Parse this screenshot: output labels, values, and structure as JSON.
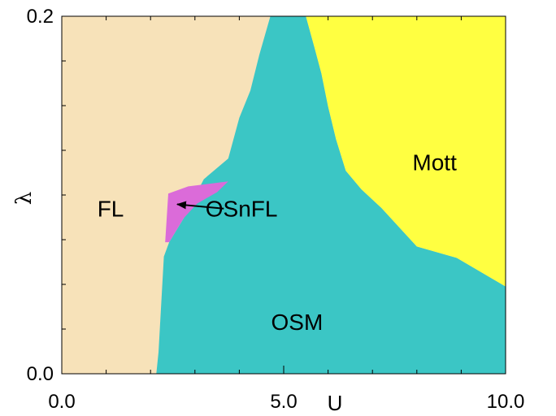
{
  "chart_data": {
    "type": "area",
    "xlabel": "U",
    "ylabel": "λ",
    "xlim": [
      0.0,
      10.0
    ],
    "ylim": [
      0.0,
      0.2
    ],
    "x_tick_labels": [
      "0.0",
      "5.0",
      "10.0"
    ],
    "y_tick_labels": [
      "0.0",
      "0.2"
    ],
    "grid": false,
    "regions": [
      {
        "name": "FL",
        "color": "#f7e2b9",
        "polygon": [
          [
            0.0,
            0.0
          ],
          [
            10.0,
            0.0
          ],
          [
            10.0,
            0.2
          ],
          [
            0.0,
            0.2
          ]
        ]
      },
      {
        "name": "OSM",
        "color": "#3bc6c5",
        "polygon": [
          [
            2.13,
            0.0
          ],
          [
            10.0,
            0.0
          ],
          [
            10.0,
            0.0488
          ],
          [
            8.9,
            0.0648
          ],
          [
            8.0,
            0.0712
          ],
          [
            7.2,
            0.0928
          ],
          [
            6.75,
            0.1032
          ],
          [
            6.4,
            0.1136
          ],
          [
            6.18,
            0.1312
          ],
          [
            6.0,
            0.1496
          ],
          [
            5.85,
            0.168
          ],
          [
            5.7,
            0.182
          ],
          [
            5.5,
            0.2
          ],
          [
            4.7,
            0.2
          ],
          [
            4.45,
            0.1784
          ],
          [
            4.25,
            0.1584
          ],
          [
            4.0,
            0.1432
          ],
          [
            3.75,
            0.1204
          ],
          [
            3.2,
            0.1088
          ],
          [
            2.75,
            0.0872
          ],
          [
            2.42,
            0.0736
          ],
          [
            2.3,
            0.0656
          ],
          [
            2.18,
            0.012
          ]
        ]
      },
      {
        "name": "OSnFL",
        "color": "#db6bd9",
        "polygon": [
          [
            2.33,
            0.0736
          ],
          [
            2.4,
            0.1008
          ],
          [
            2.85,
            0.1048
          ],
          [
            3.75,
            0.1076
          ],
          [
            3.5,
            0.1016
          ],
          [
            3.05,
            0.0952
          ],
          [
            2.75,
            0.0872
          ],
          [
            2.42,
            0.0736
          ]
        ]
      },
      {
        "name": "Mott",
        "color": "#ffff41",
        "polygon": [
          [
            6.1,
            0.2
          ],
          [
            10.0,
            0.2
          ],
          [
            10.0,
            0.0488
          ],
          [
            8.9,
            0.0648
          ],
          [
            8.0,
            0.0712
          ],
          [
            7.2,
            0.0928
          ],
          [
            6.75,
            0.1032
          ],
          [
            6.4,
            0.1136
          ],
          [
            6.18,
            0.1312
          ],
          [
            6.0,
            0.1496
          ],
          [
            5.85,
            0.168
          ],
          [
            5.7,
            0.182
          ],
          [
            5.5,
            0.2
          ]
        ]
      }
    ],
    "labels": [
      {
        "text": "FL",
        "x": 1.1,
        "y": 0.0924
      },
      {
        "text": "OSnFL",
        "x": 4.05,
        "y": 0.0924
      },
      {
        "text": "Mott",
        "x": 8.4,
        "y": 0.1184
      },
      {
        "text": "OSM",
        "x": 5.3,
        "y": 0.0292
      }
    ],
    "annotations": [
      {
        "type": "arrow",
        "from": [
          3.65,
          0.0924
        ],
        "to": [
          2.6,
          0.0948
        ],
        "points_to": "OSnFL"
      }
    ]
  }
}
